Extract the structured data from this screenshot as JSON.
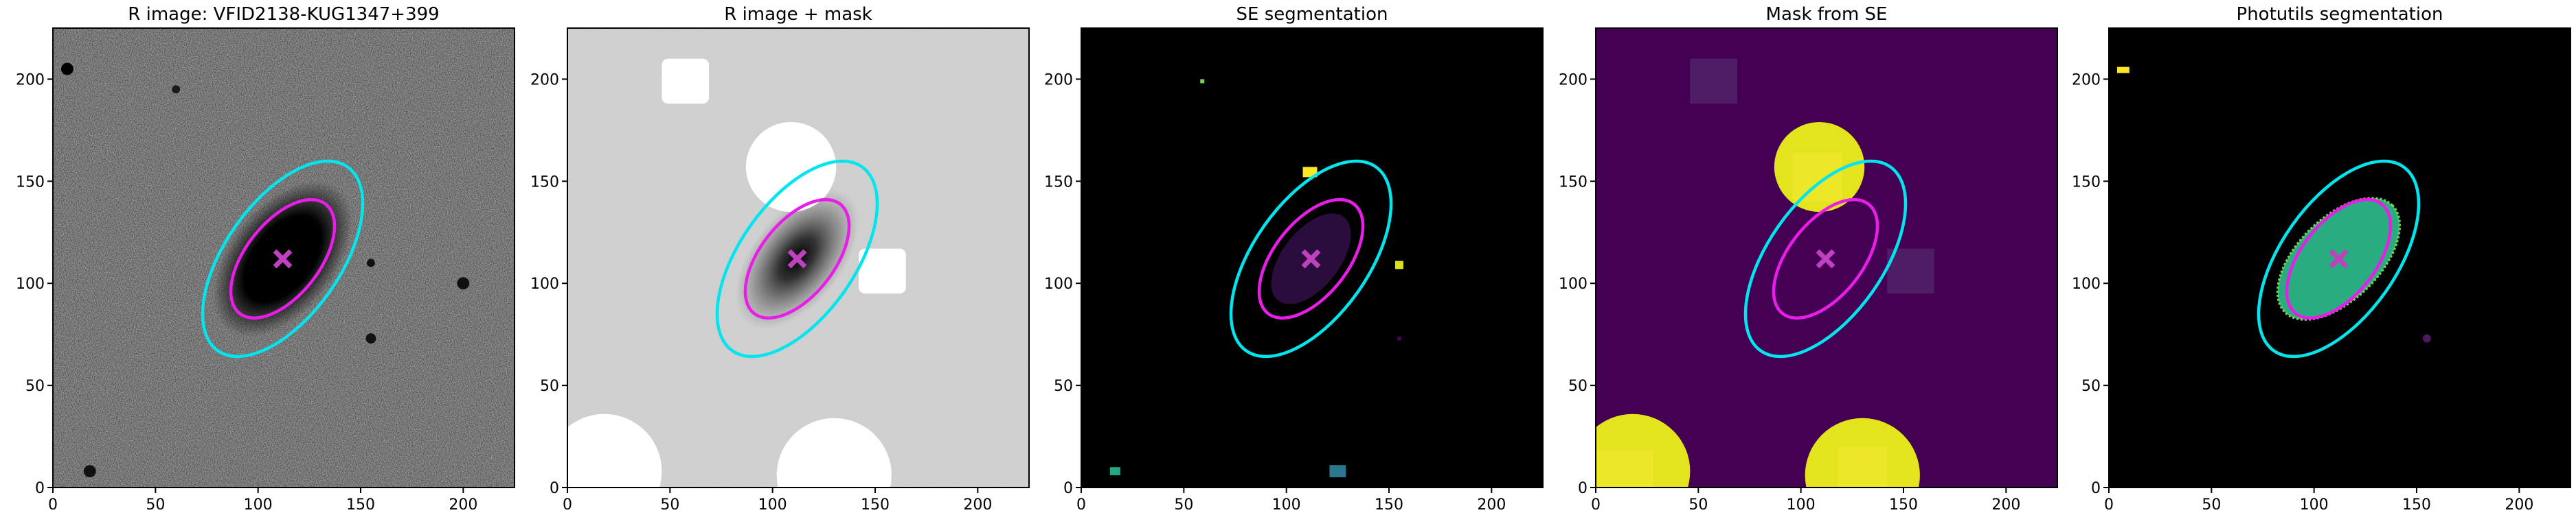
{
  "chart_data": [
    {
      "type": "image",
      "title": "R image: VFID2138-KUG1347+399",
      "xlim": [
        0,
        225
      ],
      "ylim": [
        0,
        225
      ],
      "xticks": [
        0,
        50,
        100,
        150,
        200
      ],
      "yticks": [
        0,
        50,
        100,
        150,
        200
      ],
      "ellipses": [
        {
          "color": "#00e5ee",
          "x": 112,
          "y": 112,
          "a": 55,
          "b": 28,
          "angle": 55
        },
        {
          "color": "#e81ee8",
          "x": 112,
          "y": 112,
          "a": 34,
          "b": 18,
          "angle": 52
        }
      ],
      "marker": {
        "color": "#c040c0",
        "x": 112,
        "y": 112
      }
    },
    {
      "type": "image",
      "title": "R image + mask",
      "xlim": [
        0,
        225
      ],
      "ylim": [
        0,
        225
      ],
      "xticks": [
        0,
        50,
        100,
        150,
        200
      ],
      "yticks": [
        0,
        50,
        100,
        150,
        200
      ],
      "ellipses": [
        {
          "color": "#00e5ee",
          "x": 112,
          "y": 112,
          "a": 55,
          "b": 28,
          "angle": 55
        },
        {
          "color": "#e81ee8",
          "x": 112,
          "y": 112,
          "a": 34,
          "b": 18,
          "angle": 52
        }
      ],
      "marker": {
        "color": "#c040c0",
        "x": 112,
        "y": 112
      }
    },
    {
      "type": "image",
      "title": "SE segmentation",
      "xlim": [
        0,
        225
      ],
      "ylim": [
        0,
        225
      ],
      "xticks": [
        0,
        50,
        100,
        150,
        200
      ],
      "yticks": [
        0,
        50,
        100,
        150,
        200
      ],
      "ellipses": [
        {
          "color": "#00e5ee",
          "x": 112,
          "y": 112,
          "a": 55,
          "b": 28,
          "angle": 55
        },
        {
          "color": "#e81ee8",
          "x": 112,
          "y": 112,
          "a": 34,
          "b": 18,
          "angle": 52
        }
      ],
      "marker": {
        "color": "#c040c0",
        "x": 112,
        "y": 112
      }
    },
    {
      "type": "image",
      "title": "Mask from SE",
      "xlim": [
        0,
        225
      ],
      "ylim": [
        0,
        225
      ],
      "xticks": [
        0,
        50,
        100,
        150,
        200
      ],
      "yticks": [
        0,
        50,
        100,
        150,
        200
      ],
      "ellipses": [
        {
          "color": "#00e5ee",
          "x": 112,
          "y": 112,
          "a": 55,
          "b": 28,
          "angle": 55
        },
        {
          "color": "#e81ee8",
          "x": 112,
          "y": 112,
          "a": 34,
          "b": 18,
          "angle": 52
        }
      ],
      "marker": {
        "color": "#c040c0",
        "x": 112,
        "y": 112
      }
    },
    {
      "type": "image",
      "title": "Photutils segmentation",
      "xlim": [
        0,
        225
      ],
      "ylim": [
        0,
        225
      ],
      "xticks": [
        0,
        50,
        100,
        150,
        200
      ],
      "yticks": [
        0,
        50,
        100,
        150,
        200
      ],
      "ellipses": [
        {
          "color": "#00e5ee",
          "x": 112,
          "y": 112,
          "a": 55,
          "b": 28,
          "angle": 55
        },
        {
          "color": "#e81ee8",
          "x": 112,
          "y": 112,
          "a": 34,
          "b": 18,
          "angle": 52
        }
      ],
      "marker": {
        "color": "#c040c0",
        "x": 112,
        "y": 112
      }
    }
  ]
}
